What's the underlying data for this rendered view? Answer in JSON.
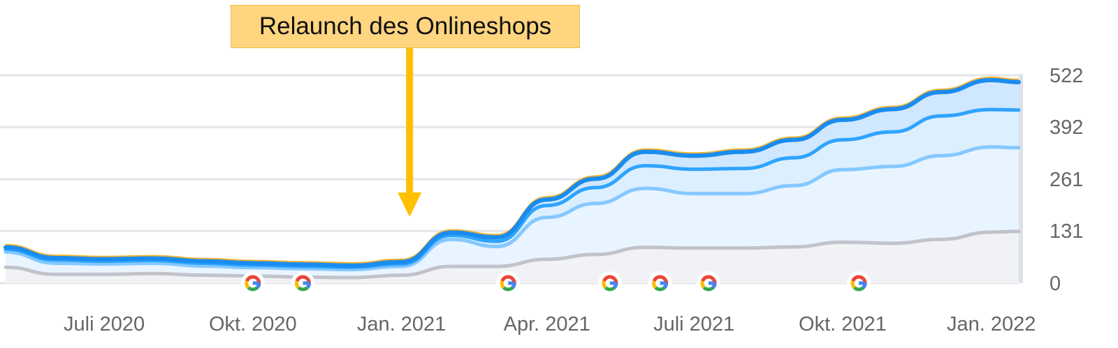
{
  "annotation": {
    "label": "Relaunch des Onlineshops",
    "date": "2021-01"
  },
  "google_icon": "google-g-icon",
  "colors": {
    "arrow": "#ffc000",
    "callout_bg": "#ffd580",
    "top_line": "#f2b431",
    "series_dark": "#1a8cf0",
    "series_mid": "#2ea4ff",
    "series_light": "#85c8ff",
    "series_gray": "#c2c2ca",
    "grid": "#e5e5ea"
  },
  "chart_data": {
    "type": "area",
    "x": [
      "2020-05",
      "2020-06",
      "2020-07",
      "2020-08",
      "2020-09",
      "2020-10",
      "2020-11",
      "2020-12",
      "2021-01",
      "2021-02",
      "2021-03",
      "2021-04",
      "2021-05",
      "2021-06",
      "2021-07",
      "2021-08",
      "2021-09",
      "2021-10",
      "2021-11",
      "2021-12",
      "2022-01",
      "2022-02"
    ],
    "x_ticks": [
      "Juli 2020",
      "Okt. 2020",
      "Jan. 2021",
      "Apr. 2021",
      "Juli 2021",
      "Okt. 2021",
      "Jan. 2022"
    ],
    "y_ticks": [
      0,
      131,
      261,
      392,
      522
    ],
    "ylim": [
      0,
      522
    ],
    "y_axis_side": "right",
    "grid": true,
    "series": [
      {
        "values": [
          90,
          63,
          60,
          62,
          55,
          50,
          47,
          44,
          53,
          127,
          115,
          210,
          262,
          330,
          320,
          330,
          360,
          410,
          437,
          480,
          510,
          505
        ]
      },
      {
        "values": [
          85,
          58,
          55,
          57,
          50,
          45,
          42,
          40,
          48,
          120,
          105,
          195,
          240,
          295,
          286,
          288,
          315,
          360,
          380,
          420,
          436,
          435
        ]
      },
      {
        "values": [
          78,
          50,
          48,
          50,
          43,
          39,
          36,
          34,
          42,
          110,
          92,
          165,
          200,
          238,
          225,
          225,
          245,
          285,
          293,
          320,
          342,
          340
        ]
      },
      {
        "values": [
          40,
          22,
          22,
          24,
          20,
          18,
          15,
          14,
          20,
          42,
          42,
          60,
          72,
          90,
          88,
          88,
          91,
          103,
          100,
          110,
          128,
          130
        ]
      }
    ],
    "google_updates": [
      "2020-10",
      "2020-11",
      "2021-03",
      "2021-05",
      "2021-06",
      "2021-07",
      "2021-10"
    ]
  }
}
